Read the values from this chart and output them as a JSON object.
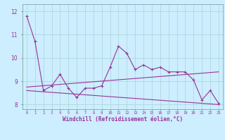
{
  "xlabel": "Windchill (Refroidissement éolien,°C)",
  "x": [
    0,
    1,
    2,
    3,
    4,
    5,
    6,
    7,
    8,
    9,
    10,
    11,
    12,
    13,
    14,
    15,
    16,
    17,
    18,
    19,
    20,
    21,
    22,
    23
  ],
  "y_main": [
    11.8,
    10.7,
    8.6,
    8.8,
    9.3,
    8.7,
    8.3,
    8.7,
    8.7,
    8.8,
    9.6,
    10.5,
    10.2,
    9.5,
    9.7,
    9.5,
    9.6,
    9.4,
    9.4,
    9.4,
    9.05,
    8.2,
    8.6,
    8.05
  ],
  "ylim": [
    7.8,
    12.3
  ],
  "xlim": [
    -0.5,
    23.5
  ],
  "yticks": [
    8,
    9,
    10,
    11,
    12
  ],
  "line_color": "#993399",
  "bg_color": "#cceeff",
  "grid_color": "#aad4d4",
  "trend1_x": [
    0,
    23
  ],
  "trend1_y": [
    8.75,
    9.4
  ],
  "trend2_x": [
    0,
    23
  ],
  "trend2_y": [
    8.6,
    8.0
  ]
}
